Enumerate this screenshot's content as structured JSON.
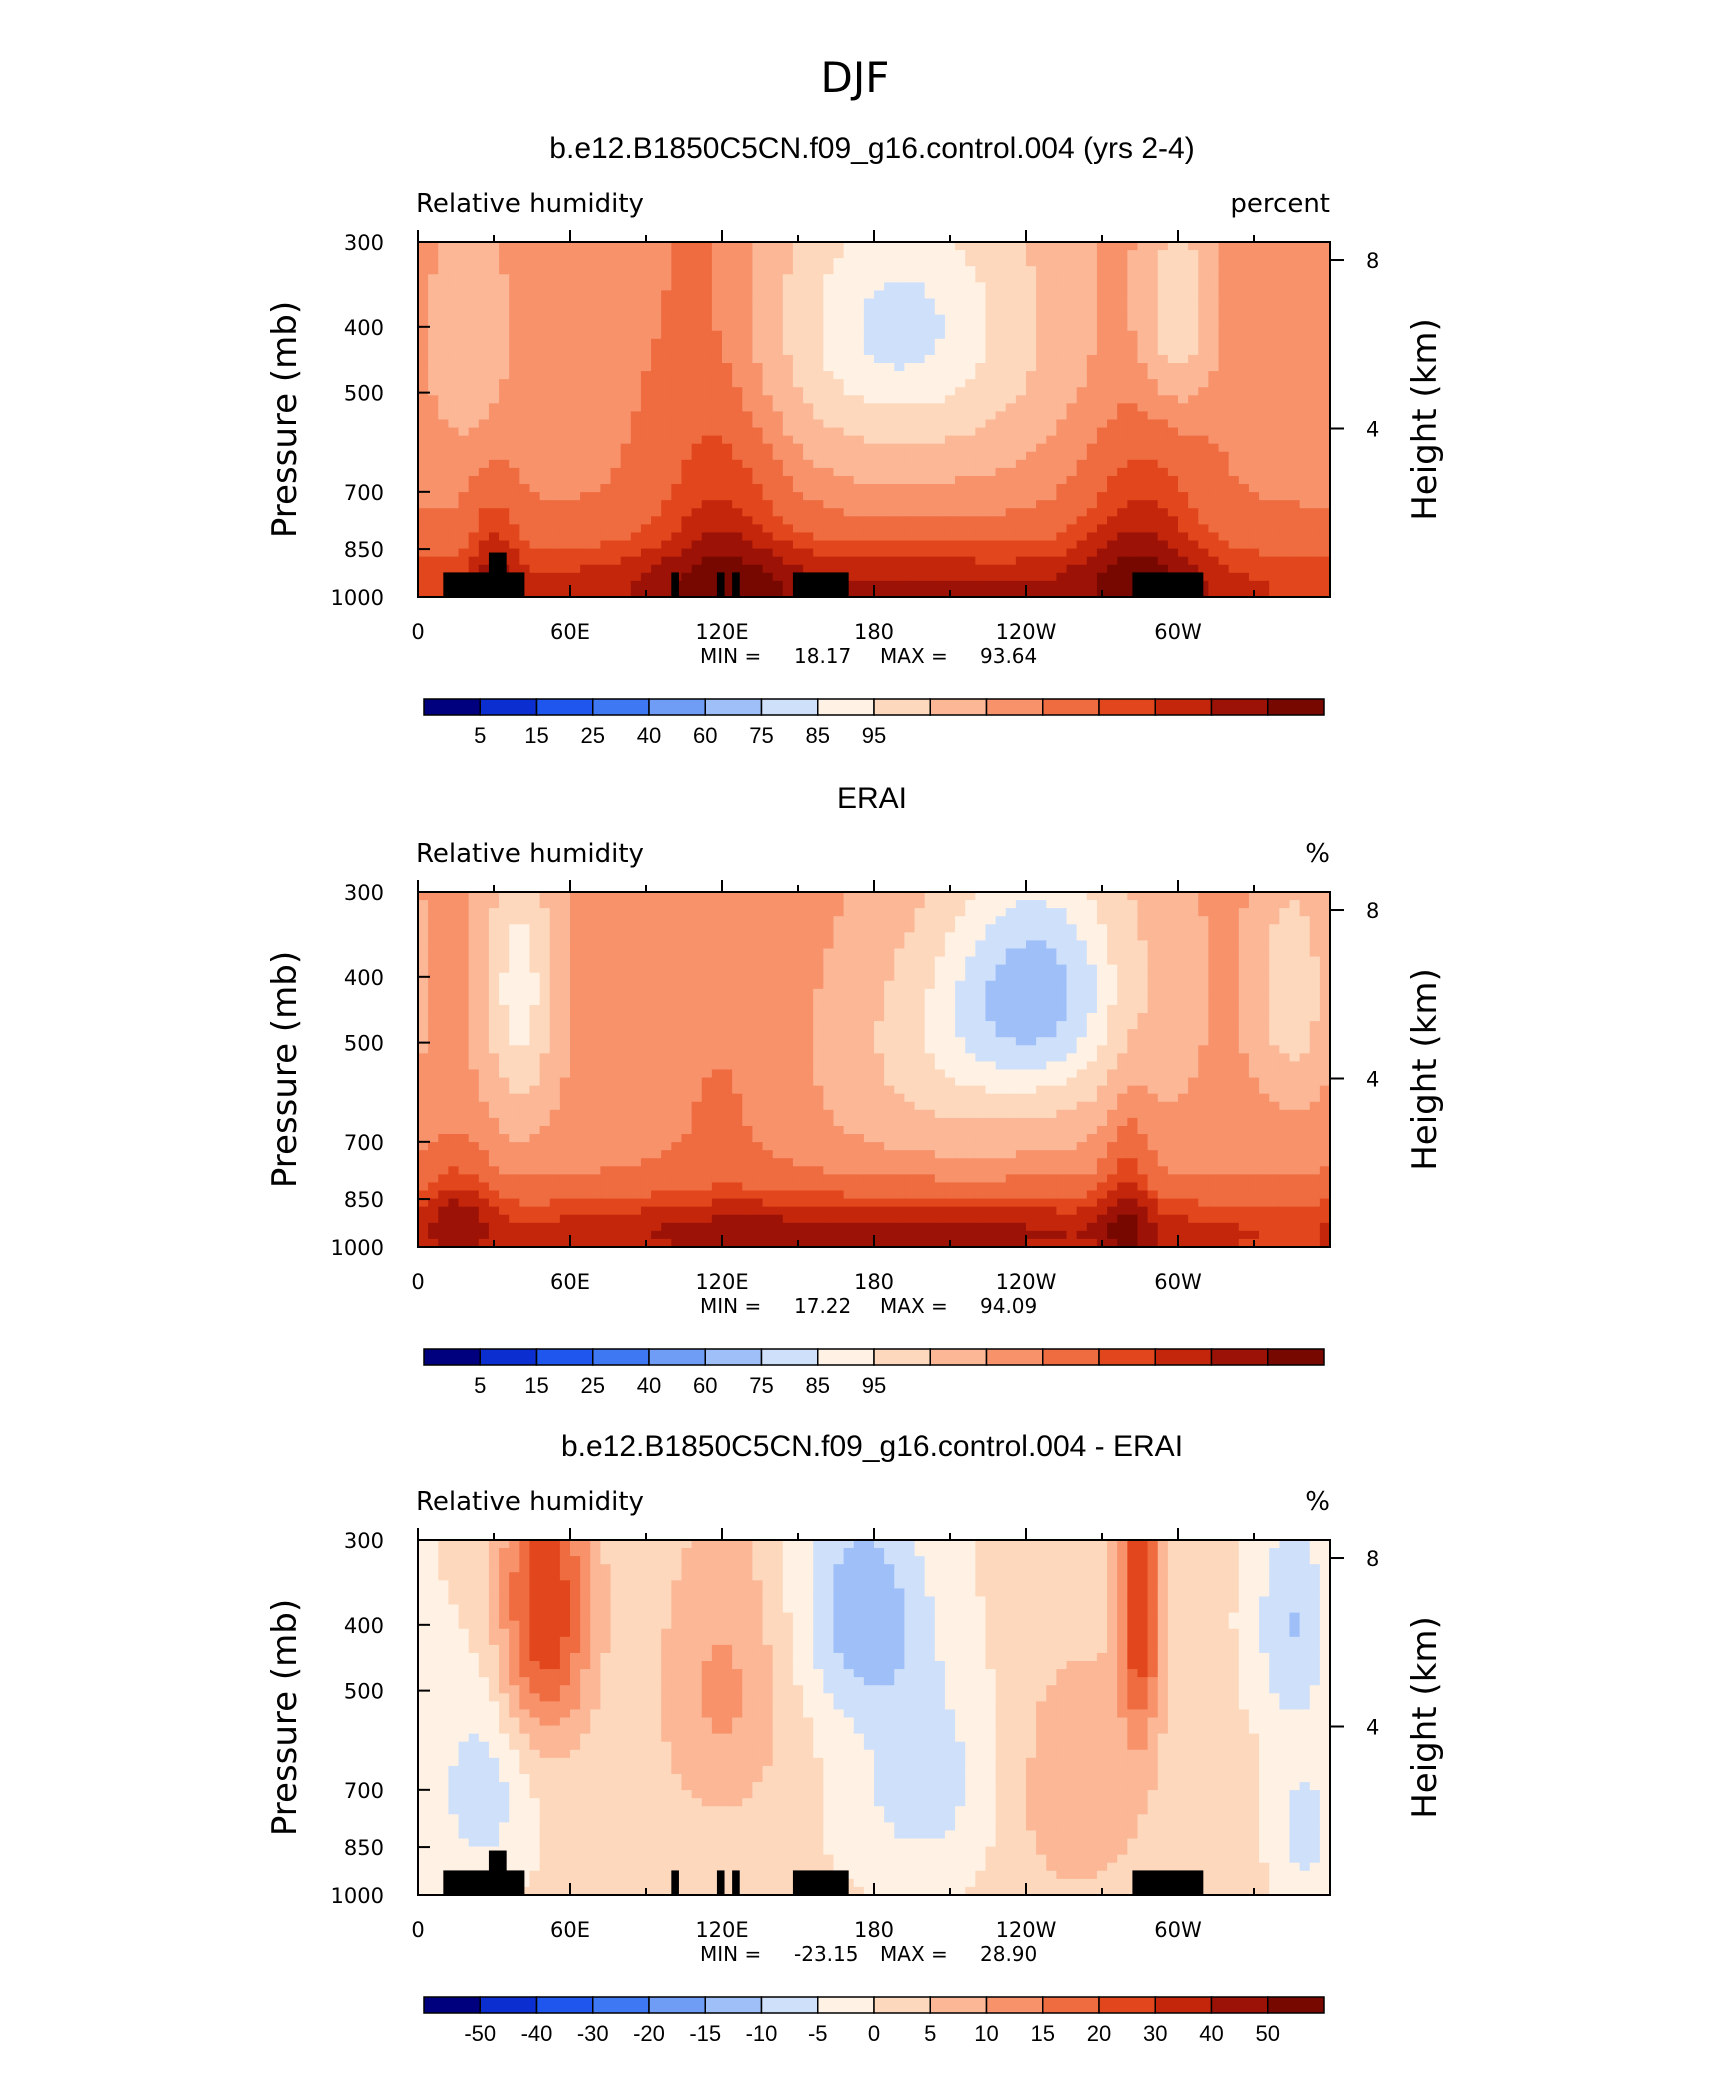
{
  "figure_title": "DJF",
  "chart_data": [
    {
      "type": "heatmap",
      "title": "b.e12.B1850C5CN.f09_g16.control.004 (yrs 2-4)",
      "left_label": "Relative humidity",
      "right_label": "percent",
      "ylabel": "Pressure (mb)",
      "ylabel_right": "Height (km)",
      "x_ticks": [
        "0",
        "60E",
        "120E",
        "180",
        "120W",
        "60W"
      ],
      "x_tick_values": [
        0,
        60,
        120,
        180,
        240,
        300
      ],
      "xlim": [
        0,
        360
      ],
      "y_ticks": [
        "300",
        "400",
        "500",
        "700",
        "850",
        "1000"
      ],
      "y_tick_values": [
        300,
        400,
        500,
        700,
        850,
        1000
      ],
      "ylim": [
        1000,
        300
      ],
      "y_scale": "log",
      "y_right_ticks": [
        "8",
        "4"
      ],
      "y_right_tick_values": [
        8,
        4
      ],
      "stats": {
        "min_label": "MIN =",
        "min": "18.17",
        "max_label": "MAX =",
        "max": "93.64"
      },
      "colorbar": {
        "labels": [
          "5",
          "15",
          "25",
          "40",
          "60",
          "75",
          "85",
          "95"
        ],
        "colors": [
          "#00007f",
          "#0a2ed0",
          "#1e56ee",
          "#3e78f2",
          "#6f9cf5",
          "#9ebff8",
          "#cfe0fb",
          "#fff2e4",
          "#fdd8bd",
          "#fbb796",
          "#f7926b",
          "#ef6b40",
          "#e2461c",
          "#c4260c",
          "#9d1206",
          "#770800"
        ]
      },
      "field": {
        "base": 66,
        "components": [
          {
            "lon": 190,
            "dlon": 62,
            "p": 400,
            "dp": 220,
            "amp": -36
          },
          {
            "lon": 300,
            "dlon": 14,
            "p": 380,
            "dp": 130,
            "amp": -25
          },
          {
            "lon": 20,
            "dlon": 18,
            "p": 420,
            "dp": 180,
            "amp": -14
          },
          {
            "lon": 180,
            "dlon": 260,
            "p": 980,
            "dp": 170,
            "amp": 20
          },
          {
            "lon": 120,
            "dlon": 28,
            "p": 650,
            "dp": 500,
            "amp": 14
          },
          {
            "lon": 285,
            "dlon": 25,
            "p": 800,
            "dp": 300,
            "amp": 14
          },
          {
            "lon": 30,
            "dlon": 10,
            "p": 850,
            "dp": 240,
            "amp": 10
          }
        ]
      },
      "topography": [
        {
          "lon0": 10,
          "lon1": 42,
          "p_top": 920
        },
        {
          "lon0": 28,
          "lon1": 35,
          "p_top": 860
        },
        {
          "lon0": 100,
          "lon1": 103,
          "p_top": 920
        },
        {
          "lon0": 118,
          "lon1": 121,
          "p_top": 920
        },
        {
          "lon0": 124,
          "lon1": 127,
          "p_top": 920
        },
        {
          "lon0": 148,
          "lon1": 170,
          "p_top": 920
        },
        {
          "lon0": 282,
          "lon1": 310,
          "p_top": 920
        }
      ]
    },
    {
      "type": "heatmap",
      "title": "ERAI",
      "left_label": "Relative humidity",
      "right_label": "%",
      "ylabel": "Pressure (mb)",
      "ylabel_right": "Height (km)",
      "x_ticks": [
        "0",
        "60E",
        "120E",
        "180",
        "120W",
        "60W"
      ],
      "x_tick_values": [
        0,
        60,
        120,
        180,
        240,
        300
      ],
      "xlim": [
        0,
        360
      ],
      "y_ticks": [
        "300",
        "400",
        "500",
        "700",
        "850",
        "1000"
      ],
      "y_tick_values": [
        300,
        400,
        500,
        700,
        850,
        1000
      ],
      "ylim": [
        1000,
        300
      ],
      "y_scale": "log",
      "y_right_ticks": [
        "8",
        "4"
      ],
      "y_right_tick_values": [
        8,
        4
      ],
      "stats": {
        "min_label": "MIN =",
        "min": "17.22",
        "max_label": "MAX =",
        "max": "94.09"
      },
      "colorbar": {
        "labels": [
          "5",
          "15",
          "25",
          "40",
          "60",
          "75",
          "85",
          "95"
        ],
        "colors": [
          "#00007f",
          "#0a2ed0",
          "#1e56ee",
          "#3e78f2",
          "#6f9cf5",
          "#9ebff8",
          "#cfe0fb",
          "#fff2e4",
          "#fdd8bd",
          "#fbb796",
          "#f7926b",
          "#ef6b40",
          "#e2461c",
          "#c4260c",
          "#9d1206",
          "#770800"
        ]
      },
      "field": {
        "base": 63,
        "components": [
          {
            "lon": 245,
            "dlon": 42,
            "p": 420,
            "dp": 200,
            "amp": -40
          },
          {
            "lon": 200,
            "dlon": 40,
            "p": 520,
            "dp": 200,
            "amp": -12
          },
          {
            "lon": 40,
            "dlon": 14,
            "p": 420,
            "dp": 200,
            "amp": -28
          },
          {
            "lon": 345,
            "dlon": 14,
            "p": 420,
            "dp": 150,
            "amp": -22
          },
          {
            "lon": 180,
            "dlon": 260,
            "p": 960,
            "dp": 150,
            "amp": 24
          },
          {
            "lon": 280,
            "dlon": 10,
            "p": 800,
            "dp": 300,
            "amp": 12
          },
          {
            "lon": 15,
            "dlon": 15,
            "p": 880,
            "dp": 200,
            "amp": 12
          },
          {
            "lon": 120,
            "dlon": 30,
            "p": 620,
            "dp": 300,
            "amp": 5
          }
        ]
      },
      "topography": []
    },
    {
      "type": "heatmap",
      "title": "b.e12.B1850C5CN.f09_g16.control.004 - ERAI",
      "left_label": "Relative humidity",
      "right_label": "%",
      "ylabel": "Pressure (mb)",
      "ylabel_right": "Height (km)",
      "x_ticks": [
        "0",
        "60E",
        "120E",
        "180",
        "120W",
        "60W"
      ],
      "x_tick_values": [
        0,
        60,
        120,
        180,
        240,
        300
      ],
      "xlim": [
        0,
        360
      ],
      "y_ticks": [
        "300",
        "400",
        "500",
        "700",
        "850",
        "1000"
      ],
      "y_tick_values": [
        300,
        400,
        500,
        700,
        850,
        1000
      ],
      "ylim": [
        1000,
        300
      ],
      "y_scale": "log",
      "y_right_ticks": [
        "8",
        "4"
      ],
      "y_right_tick_values": [
        8,
        4
      ],
      "stats": {
        "min_label": "MIN =",
        "min": "-23.15",
        "max_label": "MAX =",
        "max": "28.90"
      },
      "colorbar": {
        "labels": [
          "-50",
          "-40",
          "-30",
          "-20",
          "-15",
          "-10",
          "-5",
          "0",
          "5",
          "10",
          "15",
          "20",
          "30",
          "40",
          "50"
        ],
        "colors": [
          "#00007f",
          "#0a2ed0",
          "#1e56ee",
          "#3e78f2",
          "#6f9cf5",
          "#9ebff8",
          "#cfe0fb",
          "#fff2e4",
          "#fdd8bd",
          "#fbb796",
          "#f7926b",
          "#ef6b40",
          "#e2461c",
          "#c4260c",
          "#9d1206",
          "#770800"
        ]
      },
      "field": {
        "base": 1,
        "components": [
          {
            "lon": 50,
            "dlon": 18,
            "p": 380,
            "dp": 200,
            "amp": 24
          },
          {
            "lon": 285,
            "dlon": 8,
            "p": 360,
            "dp": 200,
            "amp": 25
          },
          {
            "lon": 260,
            "dlon": 30,
            "p": 700,
            "dp": 300,
            "amp": 8
          },
          {
            "lon": 120,
            "dlon": 25,
            "p": 500,
            "dp": 250,
            "amp": 10
          },
          {
            "lon": 175,
            "dlon": 25,
            "p": 380,
            "dp": 150,
            "amp": -14
          },
          {
            "lon": 200,
            "dlon": 30,
            "p": 680,
            "dp": 250,
            "amp": -9
          },
          {
            "lon": 345,
            "dlon": 15,
            "p": 400,
            "dp": 150,
            "amp": -11
          },
          {
            "lon": 25,
            "dlon": 18,
            "p": 700,
            "dp": 250,
            "amp": -9
          },
          {
            "lon": 350,
            "dlon": 12,
            "p": 800,
            "dp": 200,
            "amp": -8
          }
        ]
      },
      "topography": [
        {
          "lon0": 10,
          "lon1": 42,
          "p_top": 920
        },
        {
          "lon0": 28,
          "lon1": 35,
          "p_top": 860
        },
        {
          "lon0": 100,
          "lon1": 103,
          "p_top": 920
        },
        {
          "lon0": 118,
          "lon1": 121,
          "p_top": 920
        },
        {
          "lon0": 124,
          "lon1": 127,
          "p_top": 920
        },
        {
          "lon0": 148,
          "lon1": 170,
          "p_top": 920
        },
        {
          "lon0": 282,
          "lon1": 310,
          "p_top": 920
        }
      ]
    }
  ]
}
